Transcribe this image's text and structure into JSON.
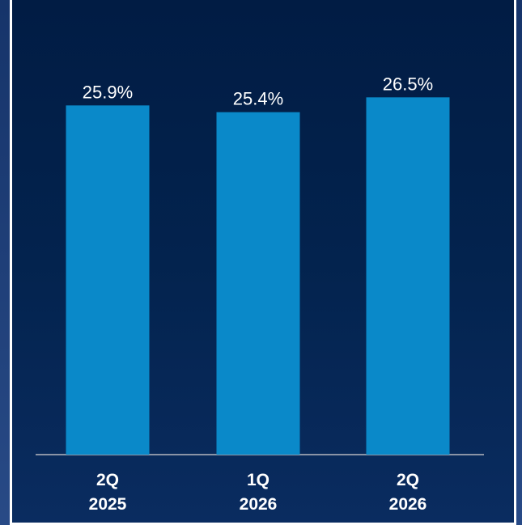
{
  "colors": {
    "background": "#03234e",
    "bar": "#0a89c9",
    "axis": "#8a94a6",
    "text": "#ffffff",
    "border": "#ffffff"
  },
  "chart_data": {
    "type": "bar",
    "title": "",
    "xlabel": "",
    "ylabel": "",
    "categories": [
      [
        "2Q",
        "2025"
      ],
      [
        "1Q",
        "2026"
      ],
      [
        "2Q",
        "2026"
      ]
    ],
    "values": [
      25.9,
      25.4,
      26.5
    ],
    "value_labels": [
      "25.9%",
      "25.4%",
      "26.5%"
    ],
    "ylim": [
      0,
      30
    ],
    "grid": false,
    "legend": "none"
  }
}
